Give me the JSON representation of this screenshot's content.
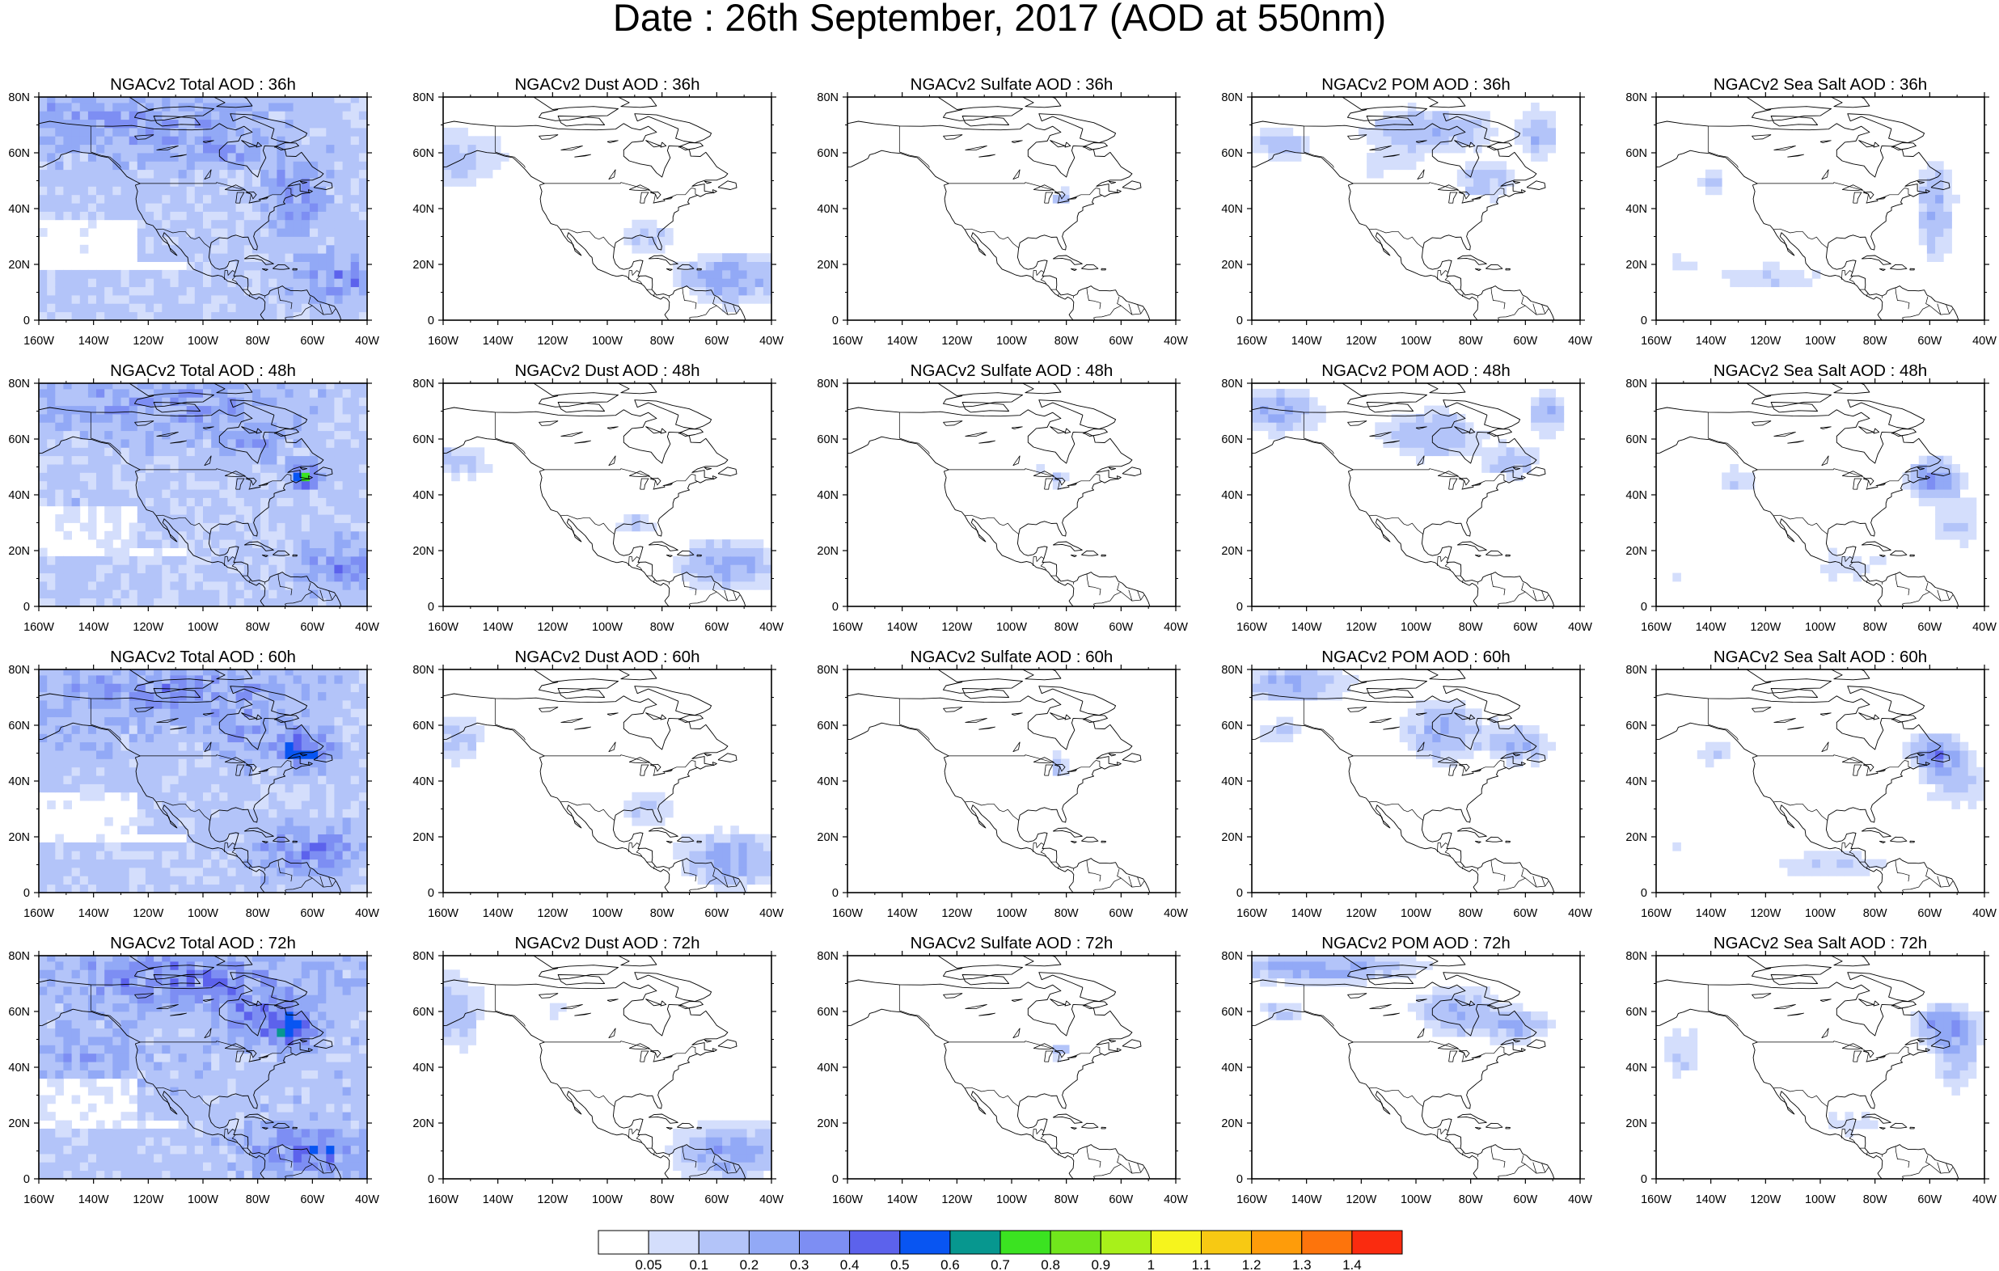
{
  "title": "Date : 26th September, 2017 (AOD at 550nm)",
  "lat_ticks": [
    "80N",
    "60N",
    "40N",
    "20N",
    "0"
  ],
  "lon_ticks": [
    "160W",
    "140W",
    "120W",
    "100W",
    "80W",
    "60W",
    "40W"
  ],
  "panels": [
    [
      {
        "label": "NGACv2 Total AOD : 36h",
        "field": "total"
      },
      {
        "label": "NGACv2 Dust AOD : 36h",
        "field": "dust"
      },
      {
        "label": "NGACv2 Sulfate AOD : 36h",
        "field": "sulfate"
      },
      {
        "label": "NGACv2 POM AOD : 36h",
        "field": "pom"
      },
      {
        "label": "NGACv2 Sea Salt AOD : 36h",
        "field": "seasalt"
      }
    ],
    [
      {
        "label": "NGACv2 Total AOD : 48h",
        "field": "total"
      },
      {
        "label": "NGACv2 Dust AOD : 48h",
        "field": "dust"
      },
      {
        "label": "NGACv2 Sulfate AOD : 48h",
        "field": "sulfate"
      },
      {
        "label": "NGACv2 POM AOD : 48h",
        "field": "pom"
      },
      {
        "label": "NGACv2 Sea Salt AOD : 48h",
        "field": "seasalt"
      }
    ],
    [
      {
        "label": "NGACv2 Total AOD : 60h",
        "field": "total"
      },
      {
        "label": "NGACv2 Dust AOD : 60h",
        "field": "dust"
      },
      {
        "label": "NGACv2 Sulfate AOD : 60h",
        "field": "sulfate"
      },
      {
        "label": "NGACv2 POM AOD : 60h",
        "field": "pom"
      },
      {
        "label": "NGACv2 Sea Salt AOD : 60h",
        "field": "seasalt"
      }
    ],
    [
      {
        "label": "NGACv2 Total AOD : 72h",
        "field": "total"
      },
      {
        "label": "NGACv2 Dust AOD : 72h",
        "field": "dust"
      },
      {
        "label": "NGACv2 Sulfate AOD : 72h",
        "field": "sulfate"
      },
      {
        "label": "NGACv2 POM AOD : 72h",
        "field": "pom"
      },
      {
        "label": "NGACv2 Sea Salt  AOD : 72h",
        "field": "seasalt"
      }
    ]
  ],
  "colorbar": {
    "levels": [
      "0.05",
      "0.1",
      "0.2",
      "0.3",
      "0.4",
      "0.5",
      "0.6",
      "0.7",
      "0.8",
      "0.9",
      "1",
      "1.1",
      "1.2",
      "1.3",
      "1.4"
    ],
    "colors": [
      "#ffffff",
      "#d4defc",
      "#b3c4f9",
      "#92a9f6",
      "#7d8ef3",
      "#5c62ec",
      "#0855f2",
      "#07978f",
      "#3be321",
      "#71e61c",
      "#a8f01a",
      "#f6f41d",
      "#f7c913",
      "#fe9c0a",
      "#fd740c",
      "#fa2b0f"
    ]
  },
  "map": {
    "lon_range": [
      "160W",
      "40W"
    ],
    "lat_range": [
      "0",
      "80N"
    ],
    "coastline_color": "#000000"
  }
}
